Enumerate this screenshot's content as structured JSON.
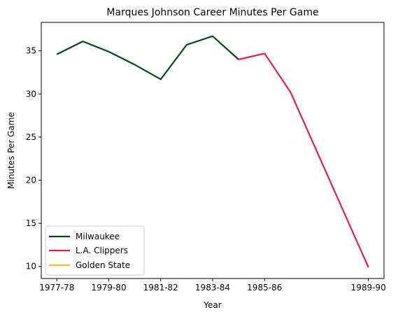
{
  "chart_data": {
    "type": "line",
    "title": "Marques Johnson Career Minutes Per Game",
    "xlabel": "Year",
    "ylabel": "Minutes Per Game",
    "x": [
      "1977-78",
      "1978-79",
      "1979-80",
      "1980-81",
      "1981-82",
      "1982-83",
      "1983-84",
      "1984-85",
      "1985-86",
      "1986-87",
      "1989-90"
    ],
    "xticks": [
      "1977-78",
      "1979-80",
      "1981-82",
      "1983-84",
      "1985-86",
      "1989-90"
    ],
    "yticks": [
      10,
      15,
      20,
      25,
      30,
      35
    ],
    "ylim": [
      8.6,
      38.3
    ],
    "legend_position": "lower-left",
    "series": [
      {
        "name": "Milwaukee",
        "color": "#00471b",
        "x": [
          "1977-78",
          "1978-79",
          "1979-80",
          "1980-81",
          "1981-82",
          "1982-83",
          "1983-84",
          "1984-85"
        ],
        "values": [
          34.6,
          36.1,
          34.9,
          33.4,
          31.7,
          35.7,
          36.7,
          34.0
        ]
      },
      {
        "name": "L.A. Clippers",
        "color": "#e0204b",
        "x": [
          "1984-85",
          "1985-86",
          "1986-87",
          "1989-90"
        ],
        "values": [
          34.0,
          34.7,
          30.2,
          9.9
        ]
      },
      {
        "name": "Golden State",
        "color": "#fdb927",
        "x": [],
        "values": []
      }
    ]
  }
}
